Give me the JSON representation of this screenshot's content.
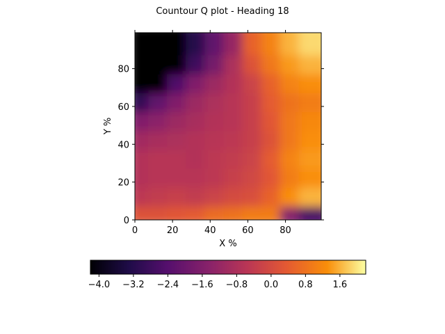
{
  "chart_data": {
    "type": "heatmap",
    "title": "Countour Q plot - Heading 18",
    "xlabel": "X %",
    "ylabel": "Y %",
    "xlim": [
      0,
      99
    ],
    "ylim": [
      0,
      99
    ],
    "xticks": [
      0,
      20,
      40,
      60,
      80
    ],
    "yticks": [
      0,
      20,
      40,
      60,
      80
    ],
    "colormap": "inferno",
    "colorbar": {
      "orientation": "horizontal",
      "placement": "bottom",
      "range": [
        -4.2,
        2.2
      ],
      "ticks": [
        -4.0,
        -3.2,
        -2.4,
        -1.6,
        -0.8,
        0.0,
        0.8,
        1.6
      ],
      "tick_labels": [
        "−4.0",
        "−3.2",
        "−2.4",
        "−1.6",
        "−0.8",
        "0.0",
        "0.8",
        "1.6"
      ]
    },
    "grid": false,
    "x_step": 10,
    "y_step": 10,
    "z": [
      [
        0.2,
        0.2,
        0.3,
        0.4,
        0.7,
        0.8,
        1.0,
        1.0,
        -1.5,
        -2.6
      ],
      [
        -0.5,
        -0.4,
        -0.3,
        -0.4,
        -0.2,
        0.0,
        0.1,
        0.5,
        1.3,
        1.6
      ],
      [
        -0.7,
        -0.6,
        -0.6,
        -0.6,
        -0.5,
        -0.3,
        -0.1,
        0.3,
        1.0,
        1.3
      ],
      [
        -0.7,
        -0.6,
        -0.6,
        -0.7,
        -0.5,
        -0.4,
        -0.2,
        0.4,
        1.1,
        1.4
      ],
      [
        -1.0,
        -0.9,
        -0.8,
        -0.7,
        -0.6,
        -0.5,
        -0.3,
        0.2,
        0.9,
        1.3
      ],
      [
        -1.6,
        -1.4,
        -1.1,
        -0.9,
        -0.7,
        -0.6,
        -0.3,
        0.3,
        0.9,
        1.2
      ],
      [
        -3.0,
        -2.2,
        -1.6,
        -1.1,
        -0.8,
        -0.6,
        -0.3,
        0.4,
        0.8,
        1.0
      ],
      [
        -4.2,
        -4.2,
        -2.5,
        -1.6,
        -1.1,
        -0.7,
        -0.2,
        0.5,
        1.1,
        1.3
      ],
      [
        -4.2,
        -4.2,
        -4.2,
        -2.8,
        -1.8,
        -0.8,
        0.2,
        0.9,
        1.4,
        1.6
      ],
      [
        -4.2,
        -4.2,
        -4.2,
        -3.2,
        -2.2,
        -1.2,
        0.5,
        1.1,
        1.6,
        1.9
      ]
    ]
  }
}
